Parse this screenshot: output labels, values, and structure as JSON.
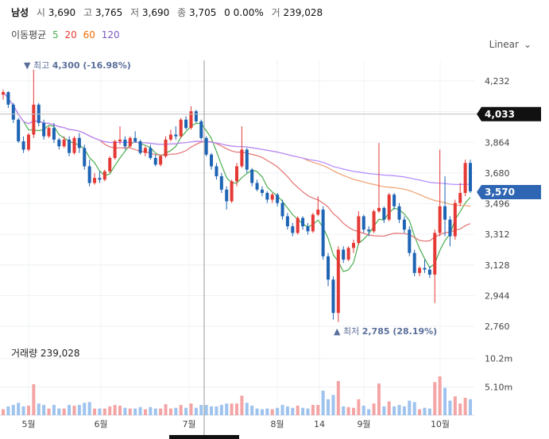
{
  "header": {
    "name": "남성",
    "open_label": "시",
    "open": "3,690",
    "high_label": "고",
    "high": "3,765",
    "low_label": "저",
    "low": "3,690",
    "close_label": "종",
    "close": "3,705",
    "change": "0",
    "change_pct": "0.00%",
    "volume_label": "거",
    "volume": "239,028"
  },
  "ma_legend": {
    "label": "이동평균",
    "periods": [
      "5",
      "20",
      "60",
      "120"
    ],
    "colors": [
      "#4caf50",
      "#e53935",
      "#ef6c00",
      "#7e57c2"
    ]
  },
  "scale_mode": "Linear",
  "chart_data": {
    "type": "candlestick",
    "price_axis": {
      "ticks": [
        "4,232",
        "4,048",
        "3,864",
        "3,680",
        "3,496",
        "3,312",
        "3,128",
        "2,944",
        "2,760"
      ],
      "ylim": [
        2760,
        4232
      ]
    },
    "volume_axis": {
      "ticks": [
        "10.2m",
        "5.10m"
      ]
    },
    "x_ticks": [
      "5월",
      "6월",
      "7월",
      "8월",
      "14",
      "9월",
      "10월"
    ],
    "high_marker": {
      "label": "최고",
      "value": "4,300",
      "pct": "(-16.98%)"
    },
    "low_marker": {
      "label": "최저",
      "value": "2,785",
      "pct": "(28.19%)"
    },
    "ref_price": "4,033",
    "ref_value": 4033,
    "current_price": "3,570",
    "current_value": 3570,
    "volume_panel": {
      "label": "거래량",
      "value": "239,028"
    },
    "colors": {
      "up": "#e53935",
      "down": "#1e64b4",
      "ma5": "#4caf50",
      "ma20": "#e57373",
      "ma60": "#f0a070",
      "ma120": "#b388ff"
    },
    "candles": [
      [
        4150,
        4180,
        4120,
        4165
      ],
      [
        4165,
        4170,
        4070,
        4090
      ],
      [
        4090,
        4100,
        3980,
        4000
      ],
      [
        4000,
        4010,
        3860,
        3870
      ],
      [
        3870,
        3900,
        3800,
        3820
      ],
      [
        3820,
        3920,
        3810,
        3910
      ],
      [
        3910,
        4300,
        3890,
        4090
      ],
      [
        4090,
        4100,
        3960,
        3980
      ],
      [
        3980,
        4000,
        3880,
        3900
      ],
      [
        3900,
        3960,
        3890,
        3950
      ],
      [
        3950,
        3980,
        3860,
        3880
      ],
      [
        3880,
        3890,
        3820,
        3840
      ],
      [
        3840,
        3900,
        3830,
        3880
      ],
      [
        3880,
        3900,
        3780,
        3800
      ],
      [
        3800,
        3900,
        3790,
        3890
      ],
      [
        3890,
        3920,
        3800,
        3830
      ],
      [
        3830,
        3850,
        3700,
        3720
      ],
      [
        3720,
        3760,
        3600,
        3620
      ],
      [
        3620,
        3680,
        3610,
        3650
      ],
      [
        3650,
        3690,
        3620,
        3640
      ],
      [
        3640,
        3700,
        3630,
        3690
      ],
      [
        3690,
        3780,
        3680,
        3770
      ],
      [
        3770,
        3880,
        3760,
        3870
      ],
      [
        3870,
        3960,
        3850,
        3880
      ],
      [
        3880,
        3900,
        3820,
        3840
      ],
      [
        3840,
        3900,
        3830,
        3890
      ],
      [
        3890,
        3930,
        3860,
        3870
      ],
      [
        3870,
        3880,
        3790,
        3800
      ],
      [
        3800,
        3840,
        3780,
        3830
      ],
      [
        3830,
        3850,
        3760,
        3770
      ],
      [
        3770,
        3790,
        3720,
        3730
      ],
      [
        3730,
        3790,
        3720,
        3780
      ],
      [
        3780,
        3900,
        3770,
        3880
      ],
      [
        3880,
        3940,
        3870,
        3910
      ],
      [
        3910,
        3960,
        3880,
        3900
      ],
      [
        3900,
        4010,
        3890,
        4000
      ],
      [
        4000,
        4020,
        3940,
        3950
      ],
      [
        3950,
        4080,
        3940,
        4050
      ],
      [
        4050,
        4060,
        3980,
        3990
      ],
      [
        3990,
        4000,
        3880,
        3890
      ],
      [
        3890,
        3900,
        3780,
        3790
      ],
      [
        3790,
        3800,
        3700,
        3720
      ],
      [
        3720,
        3740,
        3640,
        3660
      ],
      [
        3660,
        3680,
        3560,
        3580
      ],
      [
        3580,
        3600,
        3460,
        3510
      ],
      [
        3510,
        3640,
        3500,
        3630
      ],
      [
        3630,
        3740,
        3600,
        3720
      ],
      [
        3720,
        3960,
        3710,
        3820
      ],
      [
        3820,
        3830,
        3680,
        3700
      ],
      [
        3700,
        3710,
        3600,
        3620
      ],
      [
        3620,
        3640,
        3570,
        3580
      ],
      [
        3580,
        3600,
        3540,
        3560
      ],
      [
        3560,
        3570,
        3500,
        3520
      ],
      [
        3520,
        3560,
        3500,
        3550
      ],
      [
        3550,
        3560,
        3480,
        3500
      ],
      [
        3500,
        3520,
        3400,
        3420
      ],
      [
        3420,
        3440,
        3340,
        3360
      ],
      [
        3360,
        3380,
        3300,
        3320
      ],
      [
        3320,
        3420,
        3310,
        3410
      ],
      [
        3410,
        3420,
        3340,
        3360
      ],
      [
        3360,
        3380,
        3310,
        3330
      ],
      [
        3330,
        3440,
        3320,
        3430
      ],
      [
        3430,
        3540,
        3420,
        3460
      ],
      [
        3460,
        3480,
        3160,
        3180
      ],
      [
        3180,
        3200,
        3000,
        3040
      ],
      [
        3040,
        3060,
        2800,
        2840
      ],
      [
        2840,
        3240,
        2785,
        3220
      ],
      [
        3220,
        3240,
        3140,
        3160
      ],
      [
        3160,
        3240,
        3150,
        3230
      ],
      [
        3230,
        3280,
        3200,
        3260
      ],
      [
        3260,
        3450,
        3250,
        3420
      ],
      [
        3420,
        3430,
        3320,
        3340
      ],
      [
        3340,
        3360,
        3300,
        3330
      ],
      [
        3330,
        3460,
        3320,
        3450
      ],
      [
        3450,
        3860,
        3440,
        3470
      ],
      [
        3470,
        3480,
        3380,
        3400
      ],
      [
        3400,
        3560,
        3390,
        3550
      ],
      [
        3550,
        3560,
        3460,
        3480
      ],
      [
        3480,
        3500,
        3380,
        3400
      ],
      [
        3400,
        3420,
        3320,
        3340
      ],
      [
        3340,
        3360,
        3180,
        3200
      ],
      [
        3200,
        3220,
        3060,
        3080
      ],
      [
        3080,
        3120,
        3060,
        3110
      ],
      [
        3110,
        3160,
        3080,
        3100
      ],
      [
        3100,
        3120,
        3050,
        3070
      ],
      [
        3070,
        3340,
        2900,
        3320
      ],
      [
        3320,
        3820,
        3300,
        3480
      ],
      [
        3480,
        3660,
        3300,
        3400
      ],
      [
        3400,
        3420,
        3240,
        3300
      ],
      [
        3300,
        3520,
        3280,
        3500
      ],
      [
        3500,
        3620,
        3480,
        3560
      ],
      [
        3560,
        3760,
        3540,
        3740
      ],
      [
        3740,
        3760,
        3560,
        3570
      ]
    ]
  }
}
